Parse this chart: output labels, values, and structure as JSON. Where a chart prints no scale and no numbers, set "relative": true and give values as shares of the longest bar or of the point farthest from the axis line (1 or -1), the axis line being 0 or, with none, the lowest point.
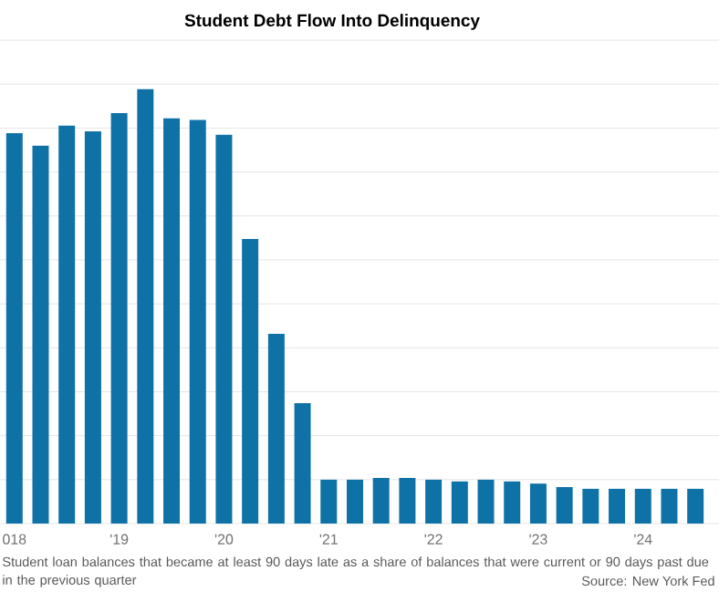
{
  "chart_data": {
    "type": "bar",
    "title": "Student Debt Flow Into Delinquency",
    "categories": [
      "018",
      null,
      null,
      null,
      "'19",
      null,
      null,
      null,
      "'20",
      null,
      null,
      null,
      "'21",
      null,
      null,
      null,
      "'22",
      null,
      null,
      null,
      "'23",
      null,
      null,
      null,
      "'24",
      null,
      null
    ],
    "values": [
      0.899,
      0.87,
      0.916,
      0.903,
      0.945,
      1,
      0.933,
      0.929,
      0.895,
      0.655,
      0.437,
      0.277,
      0.101,
      0.101,
      0.105,
      0.105,
      0.101,
      0.097,
      0.101,
      0.097,
      0.092,
      0.084,
      0.08,
      0.08,
      0.08,
      0.08,
      0.08
    ],
    "color": "#0f72a6",
    "relative": true,
    "grid": "y",
    "annotations": [
      "Student loan balances that became at least 90 days late as a share of balances that were current or 90 days past due in the previous quarter",
      "Source: New York Fed"
    ]
  }
}
